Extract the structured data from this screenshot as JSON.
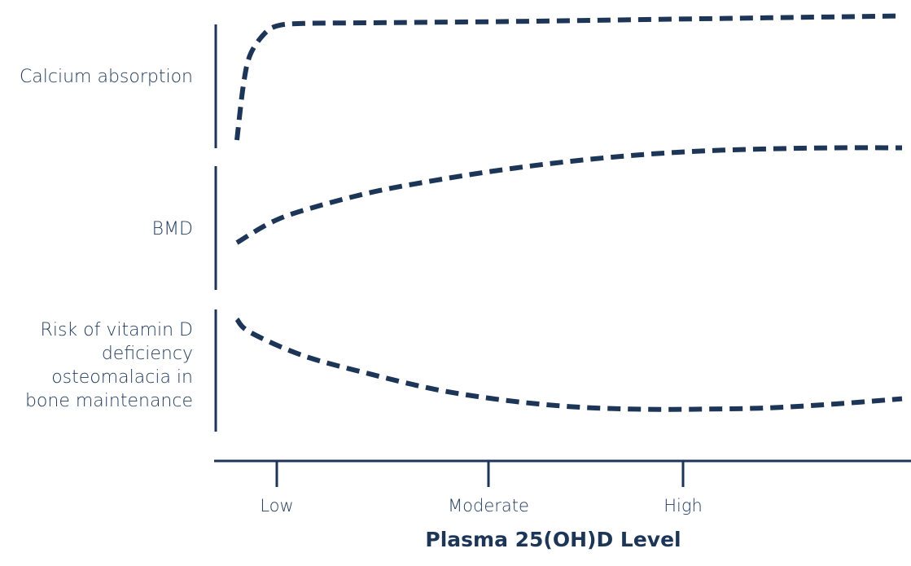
{
  "colors": {
    "ink": "#1d3557",
    "label": "#1f3a5c"
  },
  "chart_data": {
    "type": "line",
    "title": "",
    "xlabel": "Plasma 25(OH)D Level",
    "x_ticks": [
      "Low",
      "Moderate",
      "High"
    ],
    "y_axis_numeric": false,
    "grid": false,
    "legend": "none",
    "panels": [
      {
        "label_lines": [
          "Calcium absorption"
        ],
        "series_name": "",
        "trend": "rises very steeply at low levels then plateaus high",
        "x": [
          0.0,
          0.01,
          0.02,
          0.04,
          0.06,
          0.1,
          0.2,
          0.4,
          0.6,
          0.8,
          1.0
        ],
        "y": [
          0.0,
          0.45,
          0.68,
          0.84,
          0.91,
          0.93,
          0.935,
          0.945,
          0.96,
          0.975,
          0.99
        ]
      },
      {
        "label_lines": [
          "BMD"
        ],
        "series_name": "",
        "trend": "rises gradually then levels off",
        "x": [
          0.0,
          0.05,
          0.1,
          0.2,
          0.3,
          0.4,
          0.5,
          0.6,
          0.7,
          0.8,
          0.9,
          1.0
        ],
        "y": [
          0.0,
          0.19,
          0.31,
          0.48,
          0.6,
          0.7,
          0.78,
          0.84,
          0.88,
          0.9,
          0.91,
          0.91
        ]
      },
      {
        "label_lines": [
          "Risk of vitamin D",
          "deficiency",
          "osteomalacia in",
          "bone maintenance"
        ],
        "series_name": "",
        "trend": "falls from high to a minimum at high levels then rises slightly",
        "x": [
          0.0,
          0.02,
          0.1,
          0.2,
          0.3,
          0.4,
          0.5,
          0.6,
          0.7,
          0.8,
          0.9,
          1.0
        ],
        "y": [
          1.0,
          0.9,
          0.72,
          0.58,
          0.46,
          0.38,
          0.33,
          0.31,
          0.31,
          0.32,
          0.35,
          0.39
        ]
      }
    ]
  }
}
